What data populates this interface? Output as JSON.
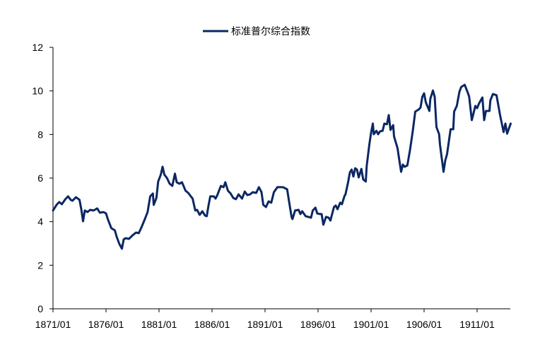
{
  "chart_data": {
    "type": "line",
    "title": "",
    "xlabel": "",
    "ylabel": "",
    "ylim": [
      0,
      12
    ],
    "yticks": [
      "0",
      "2",
      "4",
      "6",
      "8",
      "10",
      "12"
    ],
    "xticks": [
      "1871/01",
      "1876/01",
      "1881/01",
      "1886/01",
      "1891/01",
      "1896/01",
      "1901/01",
      "1906/01",
      "1911/01"
    ],
    "xlim": [
      "1871/01",
      "1914/03"
    ],
    "grid": false,
    "legend_position": "top-center",
    "series": [
      {
        "name": "标准普尔综合指数",
        "color": "#0b2763",
        "points": [
          [
            "1871/01",
            4.51
          ],
          [
            "1871/05",
            4.77
          ],
          [
            "1871/08",
            4.9
          ],
          [
            "1871/11",
            4.8
          ],
          [
            "1872/03",
            5.03
          ],
          [
            "1872/06",
            5.16
          ],
          [
            "1872/09",
            5.0
          ],
          [
            "1872/11",
            4.96
          ],
          [
            "1873/03",
            5.12
          ],
          [
            "1873/07",
            5.0
          ],
          [
            "1873/09",
            4.57
          ],
          [
            "1873/11",
            4.02
          ],
          [
            "1874/01",
            4.51
          ],
          [
            "1874/04",
            4.44
          ],
          [
            "1874/07",
            4.54
          ],
          [
            "1874/11",
            4.51
          ],
          [
            "1875/03",
            4.61
          ],
          [
            "1875/06",
            4.41
          ],
          [
            "1875/10",
            4.44
          ],
          [
            "1876/01",
            4.38
          ],
          [
            "1876/03",
            4.12
          ],
          [
            "1876/07",
            3.7
          ],
          [
            "1876/11",
            3.6
          ],
          [
            "1877/01",
            3.31
          ],
          [
            "1877/04",
            2.98
          ],
          [
            "1877/07",
            2.76
          ],
          [
            "1877/09",
            3.18
          ],
          [
            "1877/11",
            3.24
          ],
          [
            "1878/03",
            3.21
          ],
          [
            "1878/07",
            3.37
          ],
          [
            "1878/11",
            3.5
          ],
          [
            "1879/02",
            3.47
          ],
          [
            "1879/05",
            3.73
          ],
          [
            "1879/09",
            4.12
          ],
          [
            "1879/12",
            4.44
          ],
          [
            "1880/03",
            5.16
          ],
          [
            "1880/06",
            5.29
          ],
          [
            "1880/07",
            4.77
          ],
          [
            "1880/10",
            5.09
          ],
          [
            "1880/12",
            5.84
          ],
          [
            "1881/03",
            6.16
          ],
          [
            "1881/05",
            6.52
          ],
          [
            "1881/07",
            6.16
          ],
          [
            "1881/10",
            6.0
          ],
          [
            "1882/01",
            5.74
          ],
          [
            "1882/04",
            5.64
          ],
          [
            "1882/07",
            6.2
          ],
          [
            "1882/09",
            5.81
          ],
          [
            "1882/12",
            5.74
          ],
          [
            "1883/03",
            5.81
          ],
          [
            "1883/07",
            5.42
          ],
          [
            "1883/10",
            5.32
          ],
          [
            "1884/01",
            5.16
          ],
          [
            "1884/03",
            5.06
          ],
          [
            "1884/06",
            4.51
          ],
          [
            "1884/08",
            4.54
          ],
          [
            "1884/11",
            4.31
          ],
          [
            "1885/02",
            4.48
          ],
          [
            "1885/05",
            4.28
          ],
          [
            "1885/07",
            4.25
          ],
          [
            "1885/09",
            4.74
          ],
          [
            "1885/11",
            5.16
          ],
          [
            "1886/03",
            5.16
          ],
          [
            "1886/05",
            5.06
          ],
          [
            "1886/07",
            5.22
          ],
          [
            "1886/11",
            5.64
          ],
          [
            "1887/02",
            5.58
          ],
          [
            "1887/04",
            5.81
          ],
          [
            "1887/07",
            5.42
          ],
          [
            "1887/10",
            5.29
          ],
          [
            "1888/01",
            5.09
          ],
          [
            "1888/04",
            5.03
          ],
          [
            "1888/07",
            5.25
          ],
          [
            "1888/11",
            5.06
          ],
          [
            "1889/02",
            5.38
          ],
          [
            "1889/05",
            5.22
          ],
          [
            "1889/08",
            5.25
          ],
          [
            "1889/11",
            5.35
          ],
          [
            "1890/03",
            5.32
          ],
          [
            "1890/06",
            5.58
          ],
          [
            "1890/09",
            5.35
          ],
          [
            "1890/11",
            4.77
          ],
          [
            "1891/02",
            4.67
          ],
          [
            "1891/05",
            4.93
          ],
          [
            "1891/08",
            4.87
          ],
          [
            "1891/11",
            5.35
          ],
          [
            "1892/03",
            5.58
          ],
          [
            "1892/06",
            5.58
          ],
          [
            "1892/09",
            5.58
          ],
          [
            "1892/11",
            5.55
          ],
          [
            "1893/02",
            5.48
          ],
          [
            "1893/04",
            4.96
          ],
          [
            "1893/07",
            4.22
          ],
          [
            "1893/08",
            4.12
          ],
          [
            "1893/11",
            4.51
          ],
          [
            "1894/03",
            4.54
          ],
          [
            "1894/05",
            4.35
          ],
          [
            "1894/07",
            4.48
          ],
          [
            "1894/11",
            4.25
          ],
          [
            "1895/02",
            4.22
          ],
          [
            "1895/05",
            4.18
          ],
          [
            "1895/07",
            4.51
          ],
          [
            "1895/10",
            4.64
          ],
          [
            "1895/12",
            4.38
          ],
          [
            "1896/03",
            4.35
          ],
          [
            "1896/05",
            4.35
          ],
          [
            "1896/07",
            3.86
          ],
          [
            "1896/10",
            4.22
          ],
          [
            "1897/01",
            4.18
          ],
          [
            "1897/03",
            4.05
          ],
          [
            "1897/07",
            4.67
          ],
          [
            "1897/09",
            4.74
          ],
          [
            "1897/11",
            4.57
          ],
          [
            "1898/02",
            4.87
          ],
          [
            "1898/04",
            4.8
          ],
          [
            "1898/07",
            5.19
          ],
          [
            "1898/08",
            5.25
          ],
          [
            "1898/11",
            5.81
          ],
          [
            "1899/01",
            6.26
          ],
          [
            "1899/03",
            6.39
          ],
          [
            "1899/05",
            6.07
          ],
          [
            "1899/07",
            6.45
          ],
          [
            "1899/09",
            6.39
          ],
          [
            "1899/11",
            6.03
          ],
          [
            "1900/02",
            6.42
          ],
          [
            "1900/04",
            5.94
          ],
          [
            "1900/07",
            5.84
          ],
          [
            "1900/08",
            6.55
          ],
          [
            "1900/11",
            7.53
          ],
          [
            "1901/01",
            8.08
          ],
          [
            "1901/03",
            8.5
          ],
          [
            "1901/04",
            8.01
          ],
          [
            "1901/07",
            8.17
          ],
          [
            "1901/09",
            8.01
          ],
          [
            "1901/11",
            8.14
          ],
          [
            "1902/02",
            8.17
          ],
          [
            "1902/04",
            8.5
          ],
          [
            "1902/07",
            8.47
          ],
          [
            "1902/09",
            8.89
          ],
          [
            "1902/11",
            8.21
          ],
          [
            "1903/02",
            8.43
          ],
          [
            "1903/03",
            7.91
          ],
          [
            "1903/07",
            7.36
          ],
          [
            "1903/08",
            7.07
          ],
          [
            "1903/11",
            6.29
          ],
          [
            "1904/01",
            6.62
          ],
          [
            "1904/03",
            6.52
          ],
          [
            "1904/06",
            6.58
          ],
          [
            "1904/09",
            7.27
          ],
          [
            "1904/12",
            8.11
          ],
          [
            "1905/03",
            9.05
          ],
          [
            "1905/07",
            9.15
          ],
          [
            "1905/09",
            9.24
          ],
          [
            "1905/11",
            9.73
          ],
          [
            "1906/01",
            9.89
          ],
          [
            "1906/03",
            9.47
          ],
          [
            "1906/07",
            9.08
          ],
          [
            "1906/08",
            9.63
          ],
          [
            "1906/11",
            10.02
          ],
          [
            "1907/01",
            9.73
          ],
          [
            "1907/03",
            8.34
          ],
          [
            "1907/06",
            8.01
          ],
          [
            "1907/07",
            7.53
          ],
          [
            "1907/11",
            6.29
          ],
          [
            "1908/01",
            6.81
          ],
          [
            "1908/03",
            7.1
          ],
          [
            "1908/07",
            8.24
          ],
          [
            "1908/10",
            8.24
          ],
          [
            "1908/11",
            9.05
          ],
          [
            "1909/02",
            9.31
          ],
          [
            "1909/05",
            9.96
          ],
          [
            "1909/07",
            10.18
          ],
          [
            "1909/11",
            10.28
          ],
          [
            "1910/03",
            9.86
          ],
          [
            "1910/04",
            9.73
          ],
          [
            "1910/07",
            8.66
          ],
          [
            "1910/09",
            8.98
          ],
          [
            "1910/11",
            9.31
          ],
          [
            "1911/01",
            9.21
          ],
          [
            "1911/03",
            9.41
          ],
          [
            "1911/07",
            9.7
          ],
          [
            "1911/09",
            8.66
          ],
          [
            "1911/11",
            9.08
          ],
          [
            "1912/03",
            9.08
          ],
          [
            "1912/04",
            9.57
          ],
          [
            "1912/07",
            9.86
          ],
          [
            "1912/11",
            9.8
          ],
          [
            "1913/03",
            8.89
          ],
          [
            "1913/05",
            8.5
          ],
          [
            "1913/07",
            8.11
          ],
          [
            "1913/09",
            8.5
          ],
          [
            "1913/11",
            8.04
          ],
          [
            "1914/03",
            8.5
          ]
        ]
      }
    ]
  }
}
